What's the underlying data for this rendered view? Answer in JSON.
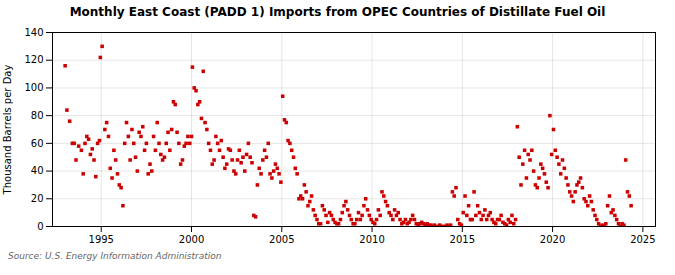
{
  "chart_data": {
    "type": "scatter",
    "title": "Monthly East Coast (PADD 1) Imports from OPEC Countries of Distillate Fuel Oil",
    "ylabel": "Thousand Barrels per Day",
    "source": "Source: U.S. Energy Information Administration",
    "color": "#cc0000",
    "marker": "square",
    "grid": true,
    "xlim": [
      1992.3,
      2025.7
    ],
    "xticks": [
      1995,
      2000,
      2005,
      2010,
      2015,
      2020,
      2025
    ],
    "ylim": [
      0,
      140
    ],
    "yticks": [
      0,
      20,
      40,
      60,
      80,
      100,
      120,
      140
    ],
    "x": [
      1993.0,
      1993.1,
      1993.25,
      1993.4,
      1993.5,
      1993.6,
      1993.75,
      1993.9,
      1994.0,
      1994.1,
      1994.2,
      1994.3,
      1994.4,
      1994.5,
      1994.6,
      1994.7,
      1994.8,
      1994.9,
      1994.95,
      1995.05,
      1995.2,
      1995.3,
      1995.4,
      1995.5,
      1995.6,
      1995.7,
      1995.8,
      1995.9,
      1996.0,
      1996.1,
      1996.2,
      1996.3,
      1996.4,
      1996.5,
      1996.6,
      1996.7,
      1996.8,
      1996.9,
      1997.0,
      1997.1,
      1997.2,
      1997.3,
      1997.4,
      1997.5,
      1997.6,
      1997.7,
      1997.8,
      1997.9,
      1998.0,
      1998.1,
      1998.2,
      1998.3,
      1998.4,
      1998.5,
      1998.6,
      1998.7,
      1998.8,
      1998.9,
      1999.0,
      1999.1,
      1999.2,
      1999.3,
      1999.4,
      1999.5,
      1999.6,
      1999.7,
      1999.8,
      1999.9,
      2000.0,
      2000.05,
      2000.15,
      2000.25,
      2000.35,
      2000.45,
      2000.55,
      2000.65,
      2000.75,
      2000.85,
      2000.95,
      2001.05,
      2001.15,
      2001.25,
      2001.35,
      2001.45,
      2001.55,
      2001.65,
      2001.75,
      2001.85,
      2001.95,
      2002.05,
      2002.15,
      2002.25,
      2002.35,
      2002.45,
      2002.55,
      2002.65,
      2002.75,
      2002.85,
      2002.95,
      2003.05,
      2003.15,
      2003.25,
      2003.35,
      2003.45,
      2003.55,
      2003.65,
      2003.75,
      2003.85,
      2003.95,
      2004.05,
      2004.15,
      2004.25,
      2004.35,
      2004.45,
      2004.55,
      2004.65,
      2004.75,
      2004.85,
      2004.95,
      2005.05,
      2005.15,
      2005.25,
      2005.35,
      2005.45,
      2005.55,
      2005.65,
      2005.75,
      2005.85,
      2005.95,
      2006.05,
      2006.15,
      2006.25,
      2006.35,
      2006.45,
      2006.55,
      2006.65,
      2006.75,
      2006.85,
      2006.95,
      2007.05,
      2007.15,
      2007.25,
      2007.35,
      2007.45,
      2007.55,
      2007.65,
      2007.75,
      2007.85,
      2007.95,
      2008.05,
      2008.15,
      2008.25,
      2008.35,
      2008.45,
      2008.55,
      2008.65,
      2008.75,
      2008.85,
      2008.95,
      2009.05,
      2009.15,
      2009.25,
      2009.35,
      2009.45,
      2009.55,
      2009.65,
      2009.75,
      2009.85,
      2009.95,
      2010.05,
      2010.15,
      2010.25,
      2010.35,
      2010.45,
      2010.55,
      2010.65,
      2010.75,
      2010.85,
      2010.95,
      2011.05,
      2011.15,
      2011.25,
      2011.35,
      2011.45,
      2011.55,
      2011.65,
      2011.75,
      2011.85,
      2011.95,
      2012.05,
      2012.15,
      2012.25,
      2012.35,
      2012.45,
      2012.55,
      2012.65,
      2012.75,
      2012.85,
      2012.95,
      2013.05,
      2013.15,
      2013.25,
      2013.35,
      2013.45,
      2013.55,
      2013.65,
      2013.75,
      2013.85,
      2013.95,
      2014.05,
      2014.15,
      2014.25,
      2014.35,
      2014.45,
      2014.55,
      2014.65,
      2014.75,
      2014.85,
      2014.95,
      2015.05,
      2015.15,
      2015.25,
      2015.35,
      2015.45,
      2015.55,
      2015.65,
      2015.75,
      2015.85,
      2015.95,
      2016.05,
      2016.15,
      2016.25,
      2016.35,
      2016.45,
      2016.55,
      2016.65,
      2016.75,
      2016.85,
      2016.95,
      2017.05,
      2017.15,
      2017.25,
      2017.35,
      2017.45,
      2017.55,
      2017.65,
      2017.75,
      2017.85,
      2017.95,
      2018.05,
      2018.15,
      2018.25,
      2018.35,
      2018.45,
      2018.55,
      2018.65,
      2018.75,
      2018.85,
      2018.95,
      2019.05,
      2019.15,
      2019.25,
      2019.35,
      2019.45,
      2019.55,
      2019.65,
      2019.75,
      2019.85,
      2019.95,
      2020.05,
      2020.15,
      2020.25,
      2020.35,
      2020.45,
      2020.55,
      2020.65,
      2020.75,
      2020.85,
      2020.95,
      2021.05,
      2021.15,
      2021.25,
      2021.35,
      2021.45,
      2021.55,
      2021.65,
      2021.75,
      2021.85,
      2021.95,
      2022.05,
      2022.15,
      2022.25,
      2022.35,
      2022.45,
      2022.55,
      2022.65,
      2022.75,
      2022.85,
      2022.95,
      2023.05,
      2023.15,
      2023.25,
      2023.35,
      2023.45,
      2023.55,
      2023.65,
      2023.75,
      2023.85,
      2023.95,
      2024.05,
      2024.15,
      2024.25,
      2024.35
    ],
    "values": [
      116,
      84,
      76,
      60,
      60,
      48,
      58,
      55,
      38,
      60,
      65,
      63,
      52,
      56,
      48,
      36,
      60,
      62,
      122,
      130,
      70,
      75,
      65,
      42,
      35,
      55,
      48,
      38,
      30,
      28,
      15,
      60,
      75,
      65,
      48,
      70,
      60,
      50,
      40,
      68,
      65,
      72,
      55,
      60,
      38,
      45,
      40,
      65,
      55,
      75,
      60,
      52,
      48,
      50,
      60,
      68,
      55,
      70,
      90,
      88,
      68,
      60,
      45,
      48,
      58,
      60,
      65,
      60,
      65,
      115,
      100,
      98,
      88,
      90,
      78,
      112,
      75,
      70,
      60,
      55,
      45,
      48,
      65,
      60,
      55,
      62,
      50,
      42,
      45,
      56,
      55,
      48,
      40,
      38,
      48,
      55,
      46,
      50,
      40,
      52,
      60,
      50,
      46,
      8,
      7,
      30,
      42,
      38,
      48,
      55,
      50,
      60,
      38,
      35,
      40,
      45,
      42,
      38,
      32,
      94,
      77,
      75,
      62,
      60,
      55,
      50,
      42,
      38,
      20,
      22,
      20,
      30,
      25,
      15,
      18,
      22,
      12,
      8,
      5,
      2,
      2,
      15,
      12,
      8,
      3,
      10,
      8,
      5,
      3,
      2,
      2,
      5,
      10,
      15,
      18,
      12,
      8,
      5,
      2,
      2,
      5,
      10,
      5,
      8,
      15,
      20,
      12,
      8,
      5,
      3,
      2,
      5,
      12,
      8,
      25,
      22,
      18,
      15,
      10,
      8,
      5,
      12,
      8,
      10,
      5,
      2,
      3,
      5,
      2,
      3,
      5,
      8,
      5,
      2,
      1,
      2,
      3,
      2,
      1,
      2,
      1,
      1,
      0,
      1,
      0,
      0,
      1,
      0,
      0,
      0,
      1,
      0,
      1,
      25,
      22,
      28,
      5,
      2,
      1,
      10,
      22,
      8,
      15,
      5,
      5,
      25,
      8,
      15,
      10,
      5,
      8,
      12,
      5,
      8,
      10,
      5,
      3,
      2,
      5,
      5,
      8,
      3,
      2,
      1,
      5,
      3,
      8,
      2,
      5,
      72,
      50,
      30,
      45,
      55,
      35,
      52,
      48,
      55,
      40,
      30,
      28,
      35,
      45,
      42,
      38,
      32,
      28,
      80,
      52,
      70,
      55,
      50,
      45,
      38,
      48,
      42,
      35,
      30,
      25,
      22,
      18,
      25,
      30,
      32,
      35,
      28,
      20,
      18,
      15,
      22,
      18,
      12,
      8,
      5,
      2,
      0,
      1,
      0,
      2,
      15,
      22,
      10,
      12,
      8,
      5,
      2,
      0,
      2,
      1,
      48,
      25,
      22,
      15
    ]
  }
}
